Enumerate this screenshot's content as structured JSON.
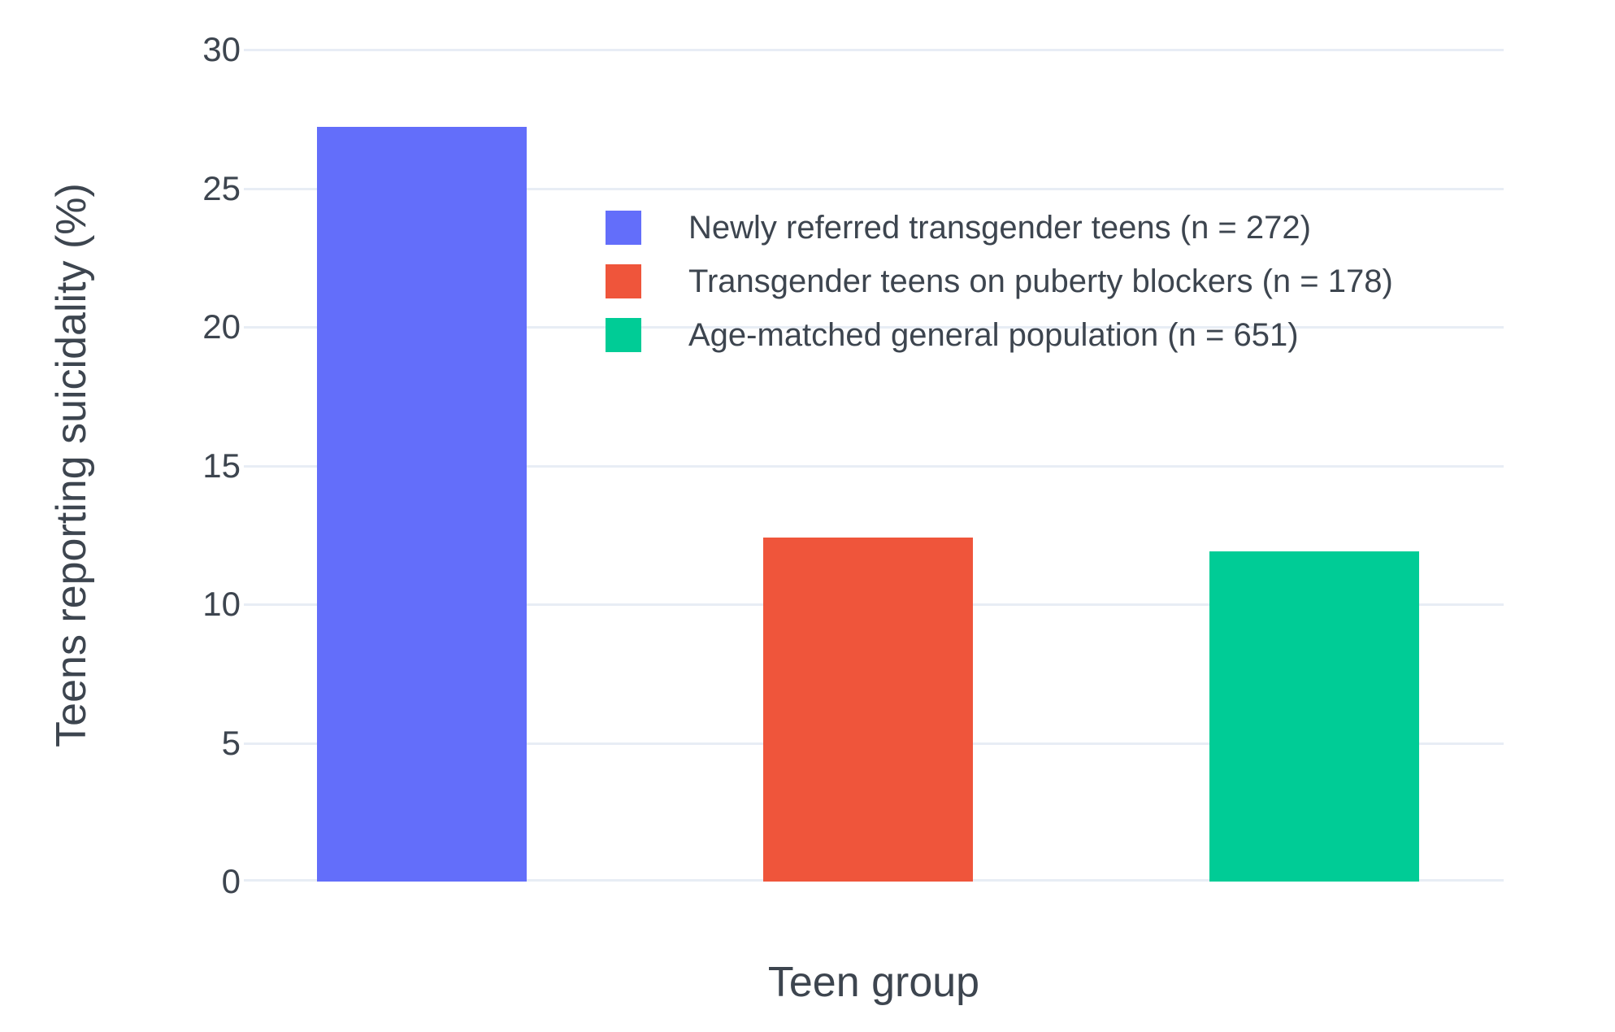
{
  "chart_data": {
    "type": "bar",
    "categories": [
      "Newly referred transgender teens (n = 272)",
      "Transgender teens on puberty blockers (n = 178)",
      "Age-matched general population (n = 651)"
    ],
    "values": [
      27.2,
      12.4,
      11.9
    ],
    "colors": [
      "#636EFA",
      "#EF553B",
      "#00CC96"
    ],
    "title": "",
    "xlabel": "Teen group",
    "ylabel": "Teens reporting suicidality (%)",
    "ylim": [
      0,
      30
    ],
    "yticks": [
      0,
      5,
      10,
      15,
      20,
      25,
      30
    ],
    "grid": true,
    "x_tick_labels_shown": false,
    "legend": {
      "position": "inside-top-center",
      "entries": [
        {
          "label": "Newly referred transgender teens (n = 272)",
          "color": "#636EFA"
        },
        {
          "label": "Transgender teens on puberty blockers (n = 178)",
          "color": "#EF553B"
        },
        {
          "label": "Age-matched general population (n = 651)",
          "color": "#00CC96"
        }
      ]
    }
  },
  "styles": {
    "background": "#FFFFFF",
    "grid_color": "#E8EDF5",
    "text_color": "#3D454F"
  }
}
